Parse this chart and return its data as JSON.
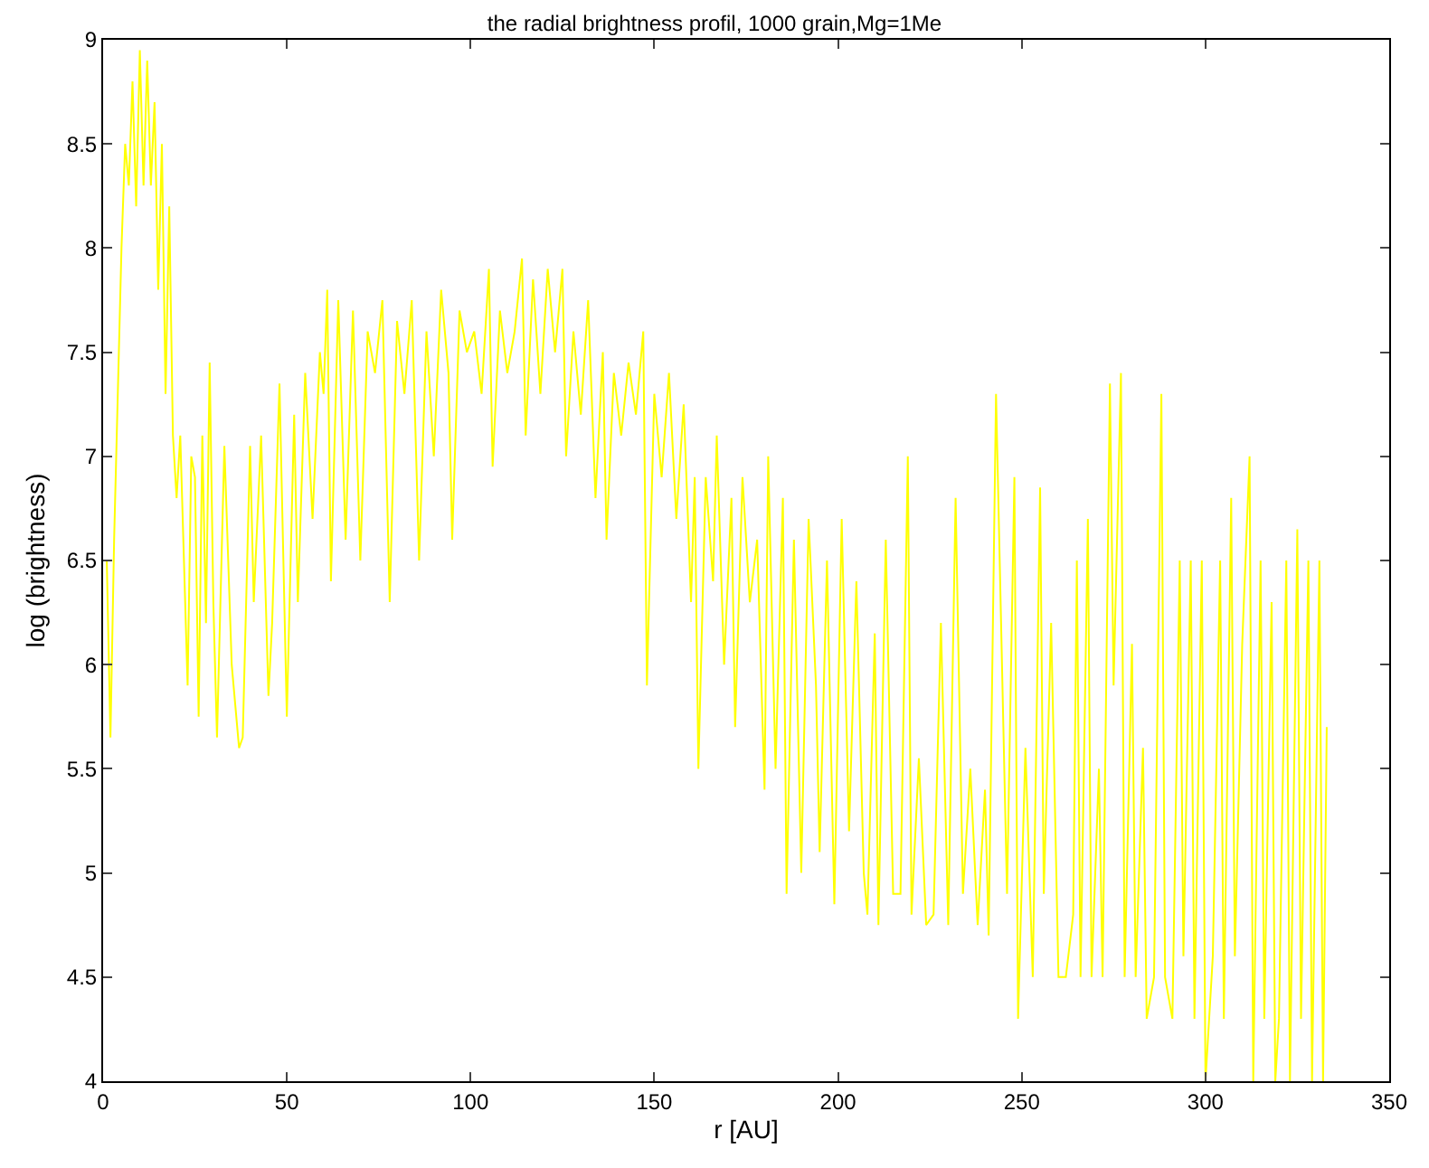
{
  "chart_data": {
    "type": "line",
    "title": "the radial brightness profil, 1000 grain,Mg=1Me",
    "xlabel": "r [AU]",
    "ylabel": "log (brightness)",
    "xlim": [
      0,
      350
    ],
    "xticks": [
      0,
      50,
      100,
      150,
      200,
      250,
      300,
      350
    ],
    "ylim": [
      4,
      9
    ],
    "yticks": [
      4,
      4.5,
      5,
      5.5,
      6,
      6.5,
      7,
      7.5,
      8,
      8.5,
      9
    ],
    "grid": false,
    "marker": "none",
    "line_style": "solid",
    "series": [
      {
        "color": "#ffff00",
        "x": [
          1,
          2,
          3,
          5,
          6,
          7,
          8,
          9,
          10,
          11,
          12,
          13,
          14,
          15,
          16,
          17,
          18,
          19,
          20,
          21,
          22,
          23,
          24,
          25,
          26,
          27,
          28,
          29,
          30,
          31,
          33,
          35,
          37,
          38,
          40,
          41,
          43,
          45,
          46,
          48,
          50,
          52,
          53,
          55,
          57,
          59,
          60,
          61,
          62,
          64,
          66,
          68,
          70,
          72,
          74,
          76,
          78,
          80,
          82,
          84,
          86,
          88,
          90,
          92,
          94,
          95,
          97,
          99,
          101,
          103,
          105,
          106,
          108,
          110,
          112,
          114,
          115,
          117,
          119,
          121,
          123,
          125,
          126,
          128,
          130,
          132,
          134,
          136,
          137,
          139,
          141,
          143,
          145,
          147,
          148,
          150,
          152,
          154,
          156,
          158,
          160,
          161,
          162,
          164,
          166,
          167,
          169,
          171,
          172,
          174,
          176,
          178,
          180,
          181,
          183,
          185,
          186,
          188,
          190,
          192,
          194,
          195,
          197,
          199,
          201,
          203,
          205,
          207,
          208,
          210,
          211,
          213,
          215,
          217,
          219,
          220,
          222,
          224,
          226,
          228,
          230,
          232,
          234,
          236,
          238,
          240,
          241,
          243,
          245,
          246,
          248,
          249,
          251,
          253,
          255,
          256,
          258,
          260,
          262,
          264,
          265,
          266,
          268,
          269,
          271,
          272,
          274,
          275,
          277,
          278,
          280,
          281,
          283,
          284,
          286,
          288,
          289,
          291,
          293,
          294,
          296,
          297,
          299,
          300,
          302,
          304,
          305,
          307,
          308,
          310,
          312,
          313,
          315,
          316,
          318,
          319,
          320,
          322,
          323,
          325,
          326,
          328,
          329,
          331,
          332,
          333
        ],
        "values": [
          6.5,
          5.65,
          6.6,
          8.0,
          8.5,
          8.3,
          8.8,
          8.2,
          8.95,
          8.3,
          8.9,
          8.3,
          8.7,
          7.8,
          8.5,
          7.3,
          8.2,
          7.1,
          6.8,
          7.1,
          6.5,
          5.9,
          7.0,
          6.9,
          5.75,
          7.1,
          6.2,
          7.45,
          6.3,
          5.65,
          7.05,
          6.0,
          5.6,
          5.65,
          7.05,
          6.3,
          7.1,
          5.85,
          6.2,
          7.35,
          5.75,
          7.2,
          6.3,
          7.4,
          6.7,
          7.5,
          7.3,
          7.8,
          6.4,
          7.75,
          6.6,
          7.7,
          6.5,
          7.6,
          7.4,
          7.75,
          6.3,
          7.65,
          7.3,
          7.75,
          6.5,
          7.6,
          7.0,
          7.8,
          7.4,
          6.6,
          7.7,
          7.5,
          7.6,
          7.3,
          7.9,
          6.95,
          7.7,
          7.4,
          7.6,
          7.95,
          7.1,
          7.85,
          7.3,
          7.9,
          7.5,
          7.9,
          7.0,
          7.6,
          7.2,
          7.75,
          6.8,
          7.5,
          6.6,
          7.4,
          7.1,
          7.45,
          7.2,
          7.6,
          5.9,
          7.3,
          6.9,
          7.4,
          6.7,
          7.25,
          6.3,
          6.9,
          5.5,
          6.9,
          6.4,
          7.1,
          6.0,
          6.8,
          5.7,
          6.9,
          6.3,
          6.6,
          5.4,
          7.0,
          5.5,
          6.8,
          4.9,
          6.6,
          5.0,
          6.7,
          5.9,
          5.1,
          6.5,
          4.85,
          6.7,
          5.2,
          6.4,
          5.0,
          4.8,
          6.15,
          4.75,
          6.6,
          4.9,
          4.9,
          7.0,
          4.8,
          5.55,
          4.75,
          4.8,
          6.2,
          4.75,
          6.8,
          4.9,
          5.5,
          4.75,
          5.4,
          4.7,
          7.3,
          5.7,
          4.9,
          6.9,
          4.3,
          5.6,
          4.5,
          6.85,
          4.9,
          6.2,
          4.5,
          4.5,
          4.8,
          6.5,
          4.5,
          6.7,
          4.5,
          5.5,
          4.5,
          7.35,
          5.9,
          7.4,
          4.5,
          6.1,
          4.5,
          5.6,
          4.3,
          4.5,
          7.3,
          4.5,
          4.3,
          6.5,
          4.6,
          6.5,
          4.3,
          6.5,
          4.0,
          4.6,
          6.5,
          4.3,
          6.8,
          4.6,
          6.1,
          7.0,
          4.0,
          6.5,
          4.3,
          6.3,
          4.0,
          4.3,
          6.5,
          4.0,
          6.65,
          4.3,
          6.5,
          4.0,
          6.5,
          4.0,
          5.7
        ]
      }
    ]
  }
}
